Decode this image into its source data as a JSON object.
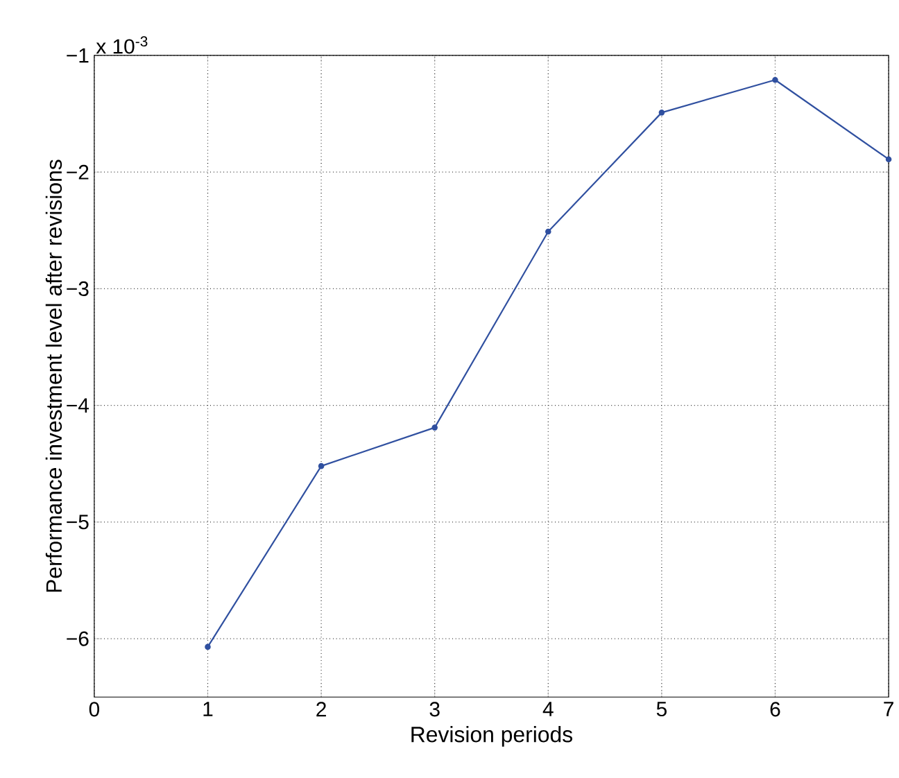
{
  "chart_data": {
    "type": "line",
    "xlabel": "Revision periods",
    "ylabel": "Performance investment level after revisions",
    "annotations": [
      "x 10$^{-3}$"
    ],
    "x": [
      1,
      2,
      3,
      4,
      5,
      6,
      7
    ],
    "series": [
      {
        "color": "#3050a0",
        "values": [
          -6.07,
          -4.52,
          -4.19,
          -2.51,
          -1.49,
          -1.21,
          -1.89
        ]
      }
    ],
    "xlim": [
      0,
      7
    ],
    "ylim": [
      -6.5,
      -1
    ],
    "xticks": [
      0,
      1,
      2,
      3,
      4,
      5,
      6,
      7
    ],
    "yticks": [
      {
        "value": -6,
        "label": "−6"
      },
      {
        "value": -5,
        "label": "−5"
      },
      {
        "value": -4,
        "label": "−4"
      },
      {
        "value": -3,
        "label": "−3"
      },
      {
        "value": -2,
        "label": "−2"
      },
      {
        "value": -1,
        "label": "−1"
      }
    ],
    "grid": true,
    "marker": "circle",
    "line_style": "solid"
  }
}
